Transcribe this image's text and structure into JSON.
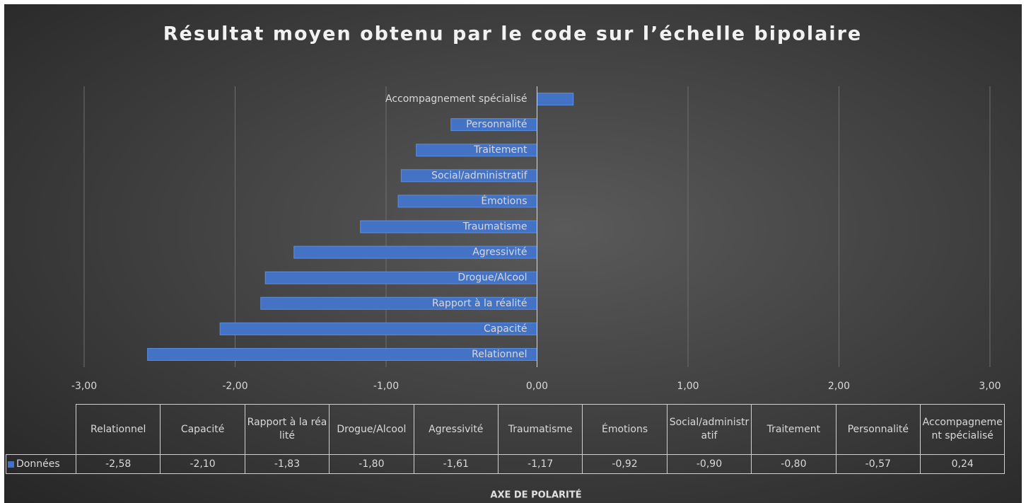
{
  "chart_data": {
    "type": "bar",
    "orientation": "horizontal",
    "title": "Résultat moyen obtenu par le code sur l’échelle bipolaire",
    "x_label": "AXE DE POLARITÉ",
    "categories": [
      "Relationnel",
      "Capacité",
      "Rapport à la réalité",
      "Drogue/Alcool",
      "Agressivité",
      "Traumatisme",
      "Émotions",
      "Social/administratif",
      "Traitement",
      "Personnalité",
      "Accompagnement spécialisé"
    ],
    "series": [
      {
        "name": "Données",
        "color": "#4472c4",
        "values": [
          -2.58,
          -2.1,
          -1.83,
          -1.8,
          -1.61,
          -1.17,
          -0.92,
          -0.9,
          -0.8,
          -0.57,
          0.24
        ],
        "value_labels": [
          "-2,58",
          "-2,10",
          "-1,83",
          "-1,80",
          "-1,61",
          "-1,17",
          "-0,92",
          "-0,90",
          "-0,80",
          "-0,57",
          "0,24"
        ]
      }
    ],
    "xlim": [
      -3,
      3
    ],
    "xticks": [
      {
        "value": -3,
        "label": "-3,00"
      },
      {
        "value": -2,
        "label": "-2,00"
      },
      {
        "value": -1,
        "label": "-1,00"
      },
      {
        "value": 0,
        "label": "0,00"
      },
      {
        "value": 1,
        "label": "1,00"
      },
      {
        "value": 2,
        "label": "2,00"
      },
      {
        "value": 3,
        "label": "3,00"
      }
    ],
    "grid": true,
    "data_table": true
  }
}
